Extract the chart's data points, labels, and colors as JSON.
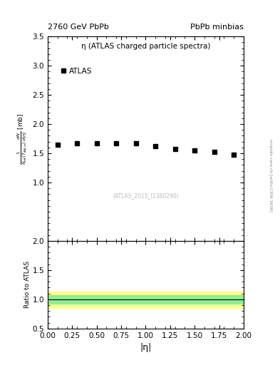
{
  "title_left": "2760 GeV PbPb",
  "title_right": "PbPb minbias",
  "plot_title": "η (ATLAS charged particle spectra)",
  "watermark": "(ATLAS_2015_I1360290)",
  "side_label": "mcplots.cern.ch [arXiv:1306.3436]",
  "xlabel": "|η|",
  "ylabel_ratio": "Ratio to ATLAS",
  "xlim": [
    0,
    2
  ],
  "ylim_main": [
    0,
    3.5
  ],
  "ylim_ratio": [
    0.5,
    2
  ],
  "yticks_main": [
    1.0,
    1.5,
    2.0,
    2.5,
    3.0,
    3.5
  ],
  "yticks_ratio": [
    0.5,
    1.0,
    1.5,
    2.0
  ],
  "data_x": [
    0.1,
    0.3,
    0.5,
    0.7,
    0.9,
    1.1,
    1.3,
    1.5,
    1.7,
    1.9
  ],
  "data_y": [
    1.65,
    1.67,
    1.67,
    1.67,
    1.67,
    1.62,
    1.57,
    1.55,
    1.53,
    1.47
  ],
  "marker_color": "#000000",
  "marker_style": "s",
  "marker_size": 4,
  "legend_label": "ATLAS",
  "ratio_line_y": 1.0,
  "ratio_band_green_lo": 0.93,
  "ratio_band_green_hi": 1.07,
  "ratio_band_yellow_lo": 0.85,
  "ratio_band_yellow_hi": 1.15,
  "ratio_band_green_color": "#90EE90",
  "ratio_band_yellow_color": "#FFFF99",
  "bg_color": "#ffffff"
}
